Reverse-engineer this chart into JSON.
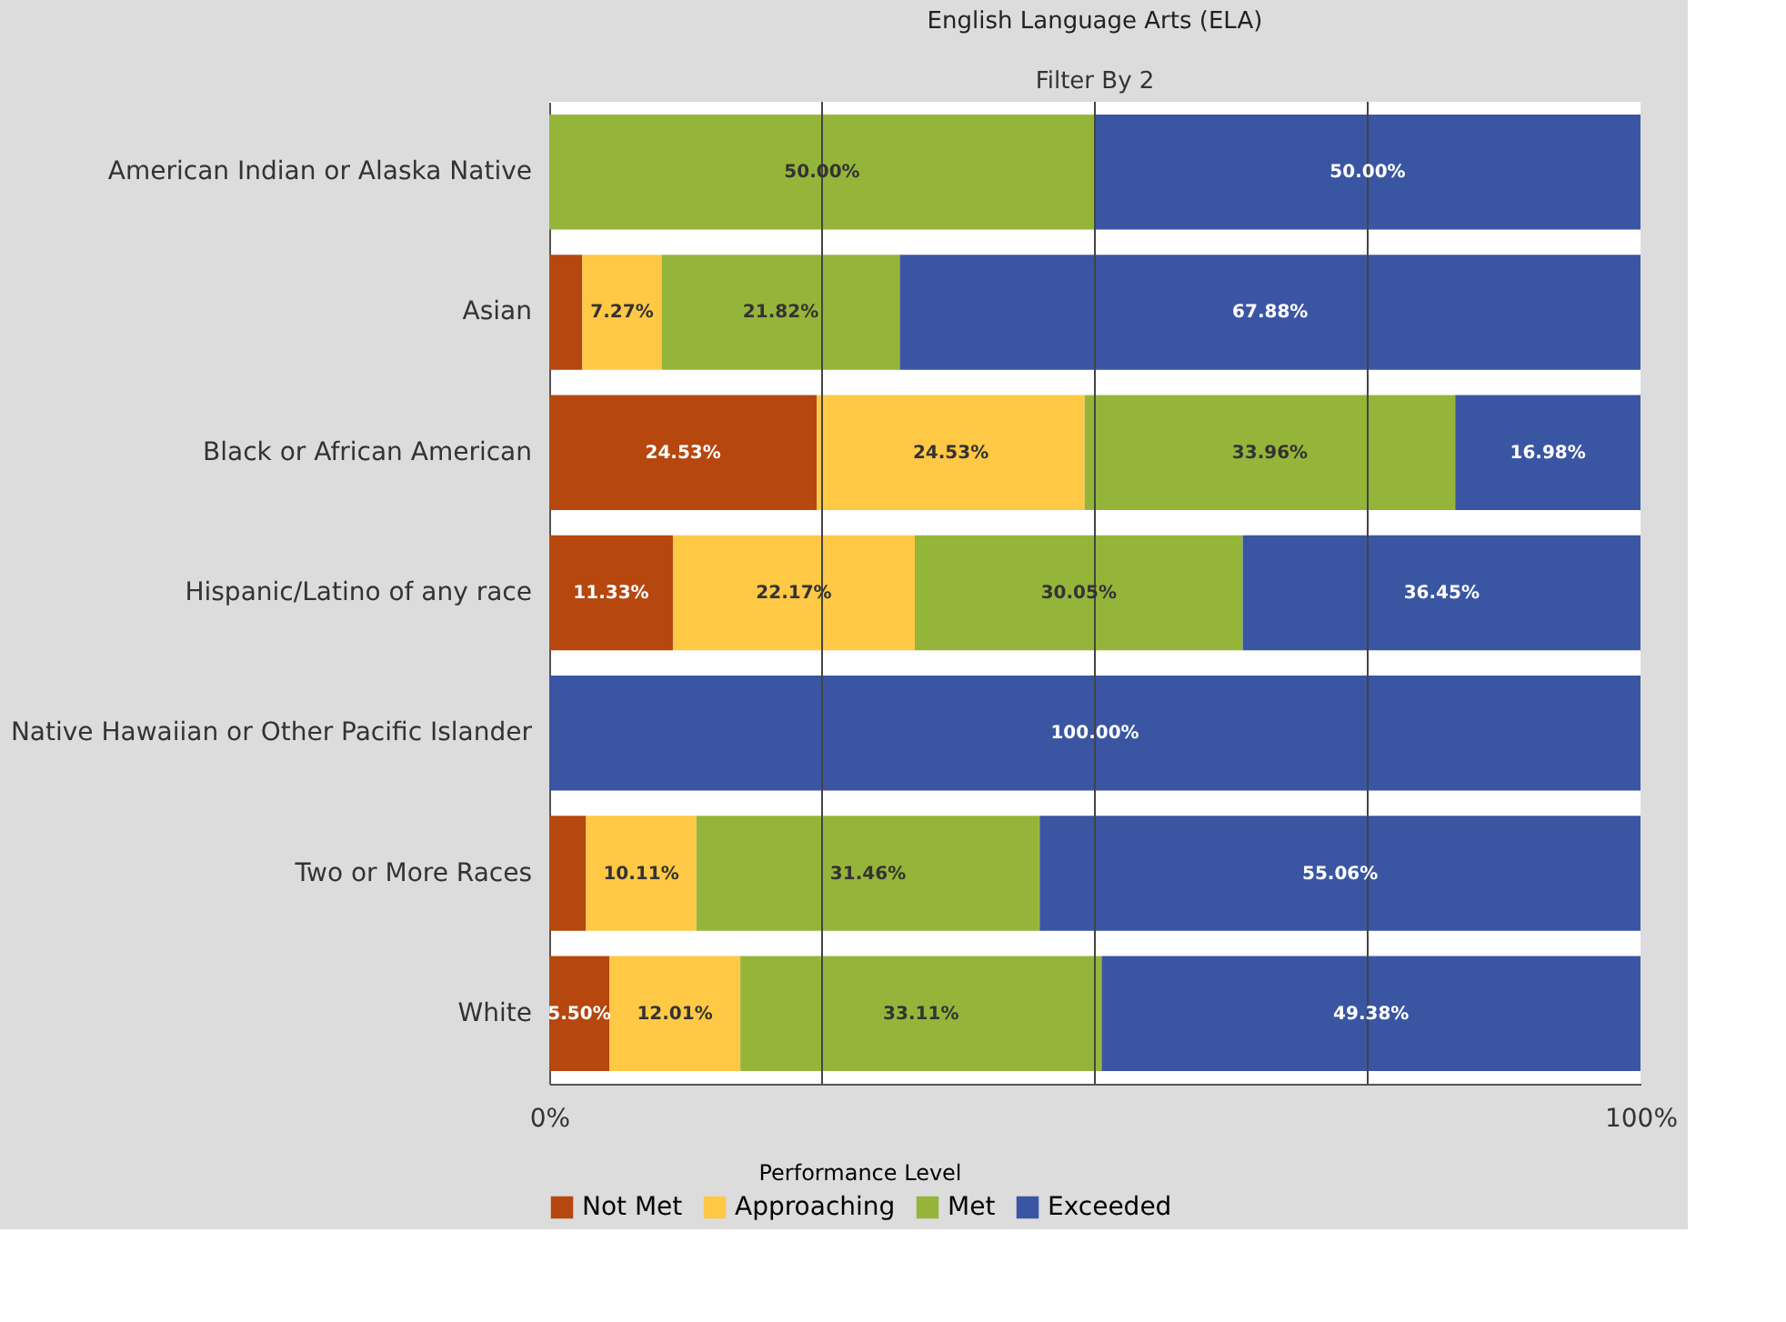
{
  "chart_data": {
    "type": "bar",
    "orientation": "horizontal",
    "stacked": true,
    "title": "English Language Arts (ELA)",
    "annotations": [
      "Filter By 2"
    ],
    "legend_title": "Performance Level",
    "legend": "bottom",
    "grid": "x",
    "categories": [
      "American Indian or Alaska Native",
      "Asian",
      "Black or African American",
      "Hispanic/Latino of any race",
      "Native Hawaiian or Other Pacific Islander",
      "Two or More Races",
      "White"
    ],
    "xlim": [
      0,
      100
    ],
    "xticks": [
      {
        "value": 0,
        "label": "0%"
      },
      {
        "value": 25,
        "label": null
      },
      {
        "value": 50,
        "label": null
      },
      {
        "value": 75,
        "label": null
      },
      {
        "value": 100,
        "label": "100%"
      }
    ],
    "series": [
      {
        "name": "Not Met",
        "color": "#b5470f",
        "values": [
          0,
          3.03,
          24.53,
          11.33,
          0,
          3.37,
          5.5
        ],
        "value_labels": [
          null,
          null,
          "24.53%",
          "11.33%",
          null,
          null,
          "5.50%"
        ]
      },
      {
        "name": "Approaching",
        "color": "#ffc845",
        "values": [
          0,
          7.27,
          24.53,
          22.17,
          0,
          10.11,
          12.01
        ],
        "value_labels": [
          null,
          "7.27%",
          "24.53%",
          "22.17%",
          null,
          "10.11%",
          "12.01%"
        ]
      },
      {
        "name": "Met",
        "color": "#95b53a",
        "values": [
          50.0,
          21.82,
          33.96,
          30.05,
          0,
          31.46,
          33.11
        ],
        "value_labels": [
          "50.00%",
          "21.82%",
          "33.96%",
          "30.05%",
          null,
          "31.46%",
          "33.11%"
        ]
      },
      {
        "name": "Exceeded",
        "color": "#3a56a3",
        "values": [
          50.0,
          67.88,
          16.98,
          36.45,
          100.0,
          55.06,
          49.38
        ],
        "value_labels": [
          "50.00%",
          "67.88%",
          "16.98%",
          "36.45%",
          "100.00%",
          "55.06%",
          "49.38%"
        ]
      }
    ]
  }
}
